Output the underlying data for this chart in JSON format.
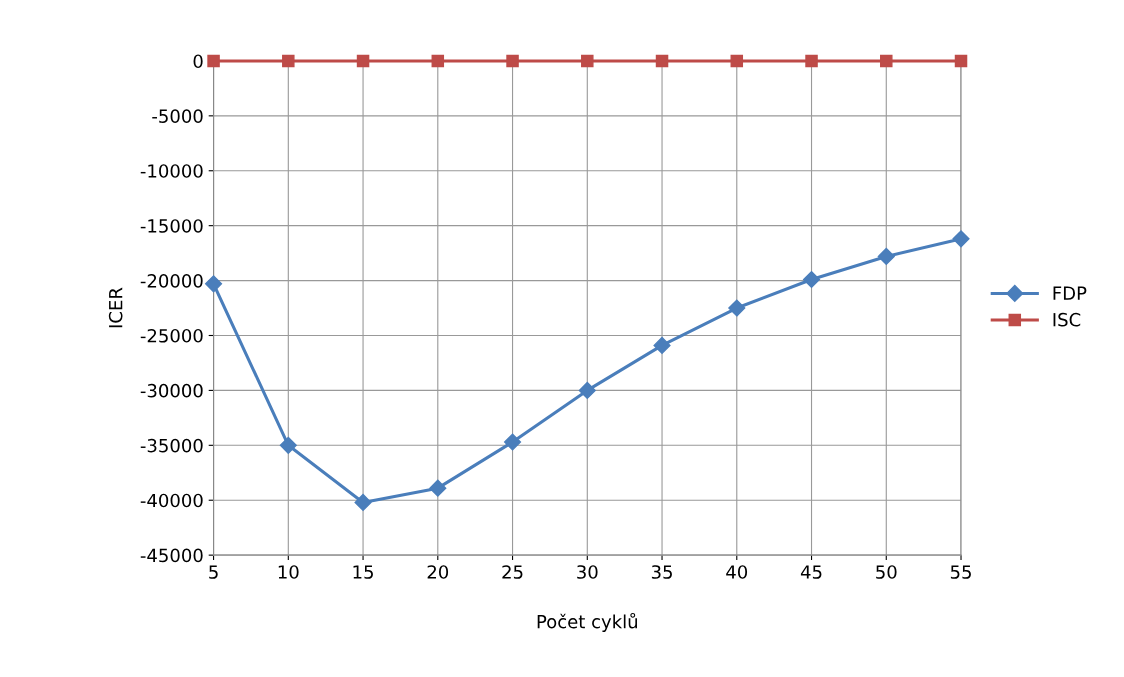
{
  "chart_data": {
    "type": "line",
    "xlabel": "Počet cyklů",
    "ylabel": "ICER",
    "x": [
      5,
      10,
      15,
      20,
      25,
      30,
      35,
      40,
      45,
      50,
      55
    ],
    "series": [
      {
        "name": "FDP",
        "color": "#4a7ebb",
        "marker": "diamond",
        "values": [
          -20300,
          -35000,
          -40200,
          -38900,
          -34700,
          -30000,
          -25900,
          -22500,
          -19900,
          -17800,
          -16200
        ]
      },
      {
        "name": "ISC",
        "color": "#be4b48",
        "marker": "square",
        "values": [
          0,
          0,
          0,
          0,
          0,
          0,
          0,
          0,
          0,
          0,
          0
        ]
      }
    ],
    "xlim": [
      5,
      55
    ],
    "xticks": [
      5,
      10,
      15,
      20,
      25,
      30,
      35,
      40,
      45,
      50,
      55
    ],
    "ylim": [
      -45000,
      0
    ],
    "yticks": [
      -45000,
      -40000,
      -35000,
      -30000,
      -25000,
      -20000,
      -15000,
      -10000,
      -5000,
      0
    ],
    "grid": true,
    "legend": "right"
  }
}
